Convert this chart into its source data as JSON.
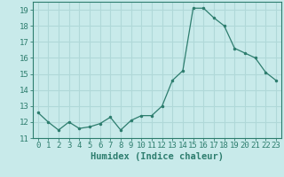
{
  "x": [
    0,
    1,
    2,
    3,
    4,
    5,
    6,
    7,
    8,
    9,
    10,
    11,
    12,
    13,
    14,
    15,
    16,
    17,
    18,
    19,
    20,
    21,
    22,
    23
  ],
  "y": [
    12.6,
    12.0,
    11.5,
    12.0,
    11.6,
    11.7,
    11.9,
    12.3,
    11.5,
    12.1,
    12.4,
    12.4,
    13.0,
    14.6,
    15.2,
    19.1,
    19.1,
    18.5,
    18.0,
    16.6,
    16.3,
    16.0,
    15.1,
    14.6
  ],
  "line_color": "#2d7d6e",
  "bg_color": "#c8eaea",
  "grid_color": "#b0d8d8",
  "xlabel": "Humidex (Indice chaleur)",
  "ylim": [
    11,
    19.5
  ],
  "xlim": [
    -0.5,
    23.5
  ],
  "yticks": [
    11,
    12,
    13,
    14,
    15,
    16,
    17,
    18,
    19
  ],
  "xticks": [
    0,
    1,
    2,
    3,
    4,
    5,
    6,
    7,
    8,
    9,
    10,
    11,
    12,
    13,
    14,
    15,
    16,
    17,
    18,
    19,
    20,
    21,
    22,
    23
  ],
  "tick_label_fontsize": 6.5,
  "xlabel_fontsize": 7.5
}
